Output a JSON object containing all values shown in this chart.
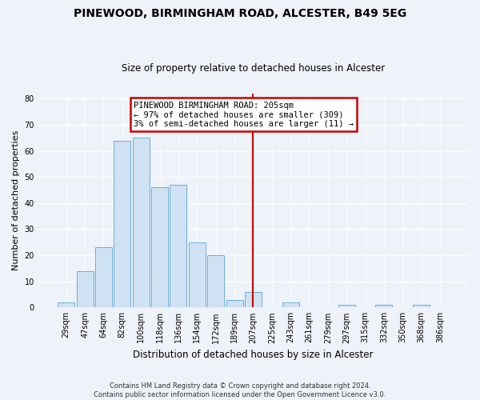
{
  "title": "PINEWOOD, BIRMINGHAM ROAD, ALCESTER, B49 5EG",
  "subtitle": "Size of property relative to detached houses in Alcester",
  "xlabel": "Distribution of detached houses by size in Alcester",
  "ylabel": "Number of detached properties",
  "bar_labels": [
    "29sqm",
    "47sqm",
    "64sqm",
    "82sqm",
    "100sqm",
    "118sqm",
    "136sqm",
    "154sqm",
    "172sqm",
    "189sqm",
    "207sqm",
    "225sqm",
    "243sqm",
    "261sqm",
    "279sqm",
    "297sqm",
    "315sqm",
    "332sqm",
    "350sqm",
    "368sqm",
    "386sqm"
  ],
  "bar_values": [
    2,
    14,
    23,
    64,
    65,
    46,
    47,
    25,
    20,
    3,
    6,
    0,
    2,
    0,
    0,
    1,
    0,
    1,
    0,
    1,
    0
  ],
  "bar_color": "#cfe2f3",
  "bar_edge_color": "#6aacdc",
  "ylim": [
    0,
    82
  ],
  "yticks": [
    0,
    10,
    20,
    30,
    40,
    50,
    60,
    70,
    80
  ],
  "vline_color": "#cc0000",
  "annotation_title": "PINEWOOD BIRMINGHAM ROAD: 205sqm",
  "annotation_line1": "← 97% of detached houses are smaller (309)",
  "annotation_line2": "3% of semi-detached houses are larger (11) →",
  "annotation_box_color": "#ffffff",
  "annotation_box_edge": "#cc0000",
  "footer1": "Contains HM Land Registry data © Crown copyright and database right 2024.",
  "footer2": "Contains public sector information licensed under the Open Government Licence v3.0.",
  "bg_color": "#eef2f9"
}
